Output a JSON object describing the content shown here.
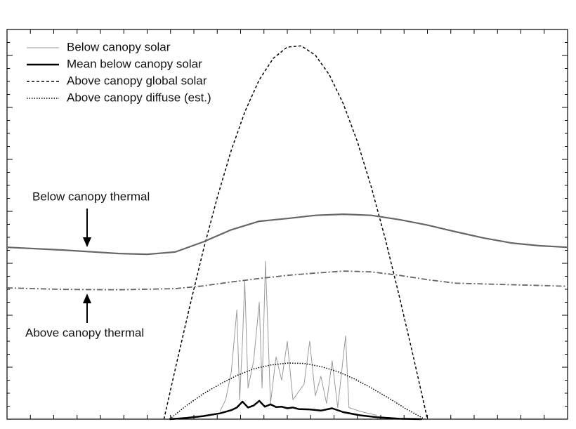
{
  "chart_data": {
    "type": "line",
    "xlim": [
      0,
      100
    ],
    "ylim": [
      0,
      100
    ],
    "legend": "upper left",
    "series": [
      {
        "name": "Below canopy solar",
        "color": "#9a9a9a",
        "style": "solid",
        "width": 1,
        "x": [
          38,
          39,
          40,
          41,
          41.5,
          42,
          42.4,
          43,
          44,
          45,
          45.5,
          46.1,
          47,
          48,
          49,
          50,
          51,
          53,
          54,
          55,
          56,
          57,
          58,
          59,
          60.4,
          61,
          63,
          66
        ],
        "values": [
          2,
          5,
          12,
          28,
          5,
          20,
          35.5,
          8,
          15,
          30,
          8,
          40.5,
          4,
          16,
          10,
          20,
          5,
          9,
          20,
          6,
          11,
          4,
          15,
          3,
          21.4,
          3,
          2,
          1
        ]
      },
      {
        "name": "Mean below canopy solar",
        "color": "#000000",
        "style": "solid",
        "width": 2.5,
        "x": [
          29,
          32,
          35,
          38,
          40,
          41,
          42,
          43,
          44,
          45,
          46,
          47,
          48,
          49,
          50,
          51,
          52,
          54,
          56,
          58,
          60,
          63,
          66,
          70,
          74
        ],
        "values": [
          0,
          0.3,
          0.8,
          1.5,
          2.3,
          3,
          4.5,
          3,
          3.5,
          4.7,
          3.2,
          3.8,
          3.1,
          3.2,
          2.8,
          3,
          2.6,
          2.5,
          2.2,
          2.8,
          1.8,
          1,
          0.5,
          0.1,
          0
        ]
      },
      {
        "name": "Above canopy global solar",
        "color": "#000000",
        "style": "dashed",
        "width": 1.5,
        "x": [
          28,
          30,
          32.5,
          35,
          37.5,
          40,
          42.5,
          45,
          47.5,
          50,
          52.5,
          55,
          57.5,
          60,
          62.5,
          65,
          67.5,
          70,
          72.5,
          75
        ],
        "values": [
          0,
          12.8,
          28.4,
          43.3,
          56.9,
          69,
          79.1,
          87.1,
          92.6,
          95.5,
          95.8,
          93.4,
          88.4,
          80.9,
          71.2,
          59.5,
          46.1,
          31.4,
          16,
          0
        ]
      },
      {
        "name": "Above canopy diffuse (est.)",
        "color": "#000000",
        "style": "dotted",
        "width": 1.5,
        "x": [
          29,
          32,
          35,
          38,
          41,
          44,
          47,
          50,
          53,
          56,
          59,
          62,
          65,
          68,
          71,
          74.5
        ],
        "values": [
          0,
          3.5,
          6.5,
          9,
          11.2,
          12.9,
          13.9,
          14.4,
          14.3,
          13.5,
          12.2,
          10.3,
          8,
          5.5,
          2.8,
          0
        ]
      },
      {
        "name": "Below canopy thermal",
        "color": "#666666",
        "style": "solid",
        "width": 2.2,
        "legend": false,
        "x": [
          0,
          10,
          20,
          25,
          30,
          35,
          40,
          45,
          50,
          55,
          60,
          65,
          70,
          75,
          80,
          85,
          90,
          95,
          100
        ],
        "values": [
          44.1,
          43.4,
          42.5,
          42.3,
          42.9,
          45.5,
          48.6,
          50.8,
          51.5,
          52.3,
          52.6,
          52.3,
          51.2,
          49.8,
          48.1,
          46.5,
          45.2,
          44.5,
          44.1
        ]
      },
      {
        "name": "Above canopy thermal",
        "color": "#666666",
        "style": "dashdot",
        "width": 1.8,
        "legend": false,
        "x": [
          0,
          10,
          20,
          30,
          35,
          40,
          45,
          50,
          55,
          60,
          65,
          70,
          75,
          80,
          90,
          100
        ],
        "values": [
          33.7,
          33.3,
          33.2,
          33.5,
          34.2,
          35.2,
          36.1,
          36.9,
          37.5,
          38,
          37.8,
          36.9,
          35.8,
          34.9,
          34.5,
          34.1
        ]
      }
    ]
  }
}
